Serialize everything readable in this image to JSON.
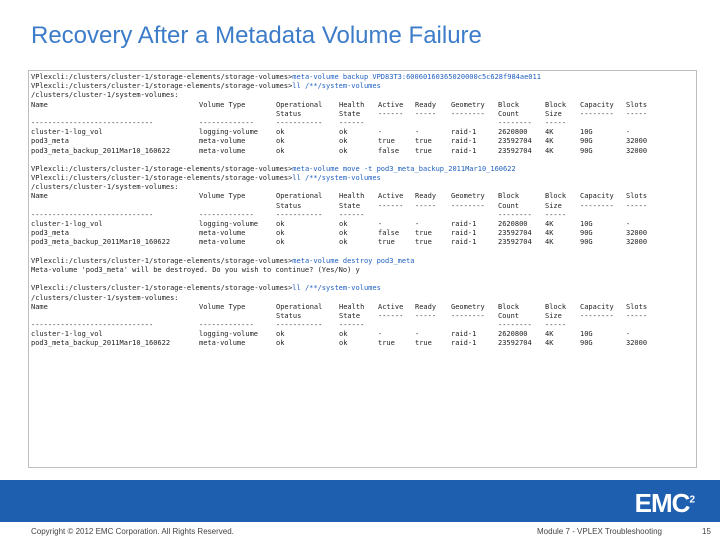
{
  "title": "Recovery After a Metadata Volume Failure",
  "terminal": {
    "blocks": [
      {
        "lines": [
          {
            "prompt": "VPlexcli:/clusters/cluster-1/storage-elements/storage-volumes>",
            "cmd": "meta-volume backup VPD83T3:60060160365020000c5c628f984ae011"
          },
          {
            "prompt": "VPlexcli:/clusters/cluster-1/storage-elements/storage-volumes>",
            "cmd": "ll /**/system-volumes"
          },
          {
            "prompt": "/clusters/cluster-1/system-volumes:",
            "cmd": ""
          }
        ],
        "table": {
          "headers": [
            [
              "Name",
              "Volume Type",
              "Operational",
              "Health",
              "Active",
              "Ready",
              "Geometry",
              "Block",
              "Block",
              "Capacity",
              "Slots"
            ],
            [
              "",
              "",
              "Status",
              "State",
              "------",
              "-----",
              "--------",
              "Count",
              "Size",
              "--------",
              "-----"
            ],
            [
              "-----------------------------",
              "-------------",
              "-----------",
              "------",
              "",
              "",
              "",
              "--------",
              "-----",
              "",
              ""
            ]
          ],
          "rows": [
            [
              "cluster-1-log_vol",
              "logging-volume",
              "ok",
              "ok",
              "-",
              "-",
              "raid-1",
              "2620800",
              "4K",
              "10G",
              "-"
            ],
            [
              "pod3_meta",
              "meta-volume",
              "ok",
              "ok",
              "true",
              "true",
              "raid-1",
              "23592704",
              "4K",
              "90G",
              "32000"
            ],
            [
              "pod3_meta_backup_2011Mar10_160622",
              "meta-volume",
              "ok",
              "ok",
              "false",
              "true",
              "raid-1",
              "23592704",
              "4K",
              "90G",
              "32000"
            ]
          ]
        }
      },
      {
        "lines": [
          {
            "prompt": "VPlexcli:/clusters/cluster-1/storage-elements/storage-volumes>",
            "cmd": "meta-volume move -t pod3_meta_backup_2011Mar10_160622"
          },
          {
            "prompt": "VPlexcli:/clusters/cluster-1/storage-elements/storage-volumes>",
            "cmd": "ll /**/system-volumes"
          },
          {
            "prompt": "/clusters/cluster-1/system-volumes:",
            "cmd": ""
          }
        ],
        "table": {
          "headers": [
            [
              "Name",
              "Volume Type",
              "Operational",
              "Health",
              "Active",
              "Ready",
              "Geometry",
              "Block",
              "Block",
              "Capacity",
              "Slots"
            ],
            [
              "",
              "",
              "Status",
              "State",
              "------",
              "-----",
              "--------",
              "Count",
              "Size",
              "--------",
              "-----"
            ],
            [
              "-----------------------------",
              "-------------",
              "-----------",
              "------",
              "",
              "",
              "",
              "--------",
              "-----",
              "",
              ""
            ]
          ],
          "rows": [
            [
              "cluster-1-log_vol",
              "logging-volume",
              "ok",
              "ok",
              "-",
              "-",
              "raid-1",
              "2620800",
              "4K",
              "10G",
              "-"
            ],
            [
              "pod3_meta",
              "meta-volume",
              "ok",
              "ok",
              "false",
              "true",
              "raid-1",
              "23592704",
              "4K",
              "90G",
              "32000"
            ],
            [
              "pod3_meta_backup_2011Mar10_160622",
              "meta-volume",
              "ok",
              "ok",
              "true",
              "true",
              "raid-1",
              "23592704",
              "4K",
              "90G",
              "32000"
            ]
          ]
        }
      },
      {
        "lines": [
          {
            "prompt": "VPlexcli:/clusters/cluster-1/storage-elements/storage-volumes>",
            "cmd": "meta-volume destroy pod3_meta"
          },
          {
            "prompt": "Meta-volume 'pod3_meta' will be destroyed. Do you wish to continue? (Yes/No) y",
            "cmd": ""
          }
        ],
        "table": null
      },
      {
        "lines": [
          {
            "prompt": "VPlexcli:/clusters/cluster-1/storage-elements/storage-volumes>",
            "cmd": "ll /**/system-volumes"
          },
          {
            "prompt": "/clusters/cluster-1/system-volumes:",
            "cmd": ""
          }
        ],
        "table": {
          "headers": [
            [
              "Name",
              "Volume Type",
              "Operational",
              "Health",
              "Active",
              "Ready",
              "Geometry",
              "Block",
              "Block",
              "Capacity",
              "Slots"
            ],
            [
              "",
              "",
              "Status",
              "State",
              "------",
              "-----",
              "--------",
              "Count",
              "Size",
              "--------",
              "-----"
            ],
            [
              "-----------------------------",
              "-------------",
              "-----------",
              "------",
              "",
              "",
              "",
              "--------",
              "-----",
              "",
              ""
            ]
          ],
          "rows": [
            [
              "cluster-1-log_vol",
              "logging-volume",
              "ok",
              "ok",
              "-",
              "-",
              "raid-1",
              "2620800",
              "4K",
              "10G",
              "-"
            ],
            [
              "pod3_meta_backup_2011Mar10_160622",
              "meta-volume",
              "ok",
              "ok",
              "true",
              "true",
              "raid-1",
              "23592704",
              "4K",
              "90G",
              "32000"
            ]
          ]
        }
      }
    ]
  },
  "footer": {
    "copyright": "Copyright © 2012 EMC Corporation. All Rights Reserved.",
    "module": "Module 7 - VPLEX Troubleshooting",
    "page": "15"
  },
  "logo": {
    "text": "EMC",
    "superscript": "2"
  },
  "colors": {
    "title": "#3d7cc9",
    "command": "#1f5fc0",
    "band": "#1f5fb0"
  }
}
